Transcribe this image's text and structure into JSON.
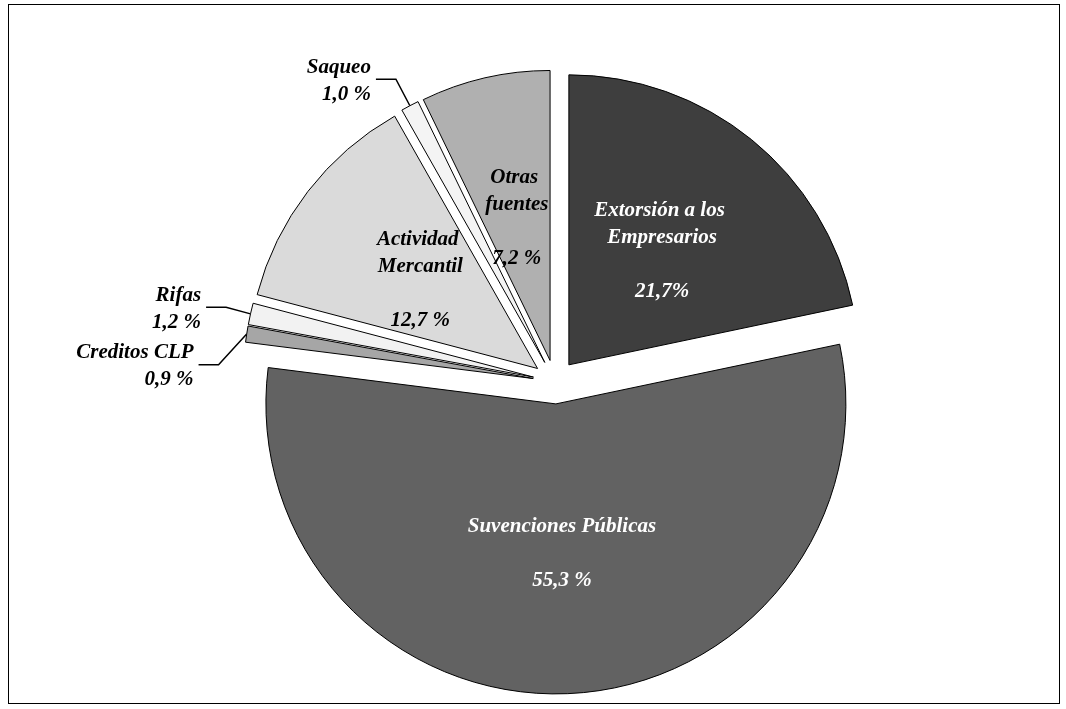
{
  "chart_data": {
    "type": "pie",
    "categories": [
      "Extorsión a los Empresarios",
      "Suvenciones Públicas",
      "Creditos CLP",
      "Rifas",
      "Actividad Mercantil",
      "Saqueo",
      "Otras fuentes"
    ],
    "values": [
      21.7,
      55.3,
      0.9,
      1.2,
      12.7,
      1.0,
      7.2
    ],
    "value_labels": [
      "21,7%",
      "55,3 %",
      "0,9 %",
      "1,2 %",
      "12,7 %",
      "1,0 %",
      "7,2 %"
    ],
    "colors": [
      "#3e3e3e",
      "#626262",
      "#a6a6a6",
      "#f2f2f2",
      "#dadada",
      "#f4f4f4",
      "#b0b0b0"
    ],
    "legend": false
  }
}
